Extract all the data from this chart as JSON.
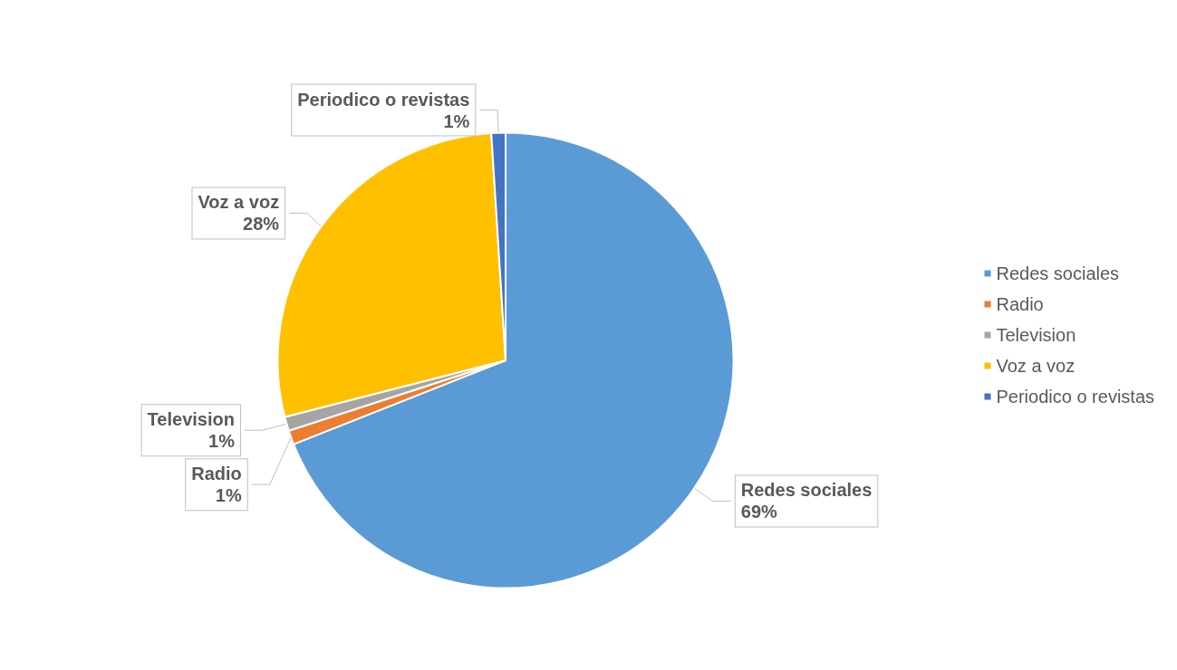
{
  "chart_data": {
    "type": "pie",
    "categories": [
      "Redes sociales",
      "Radio",
      "Television",
      "Voz a voz",
      "Periodico o revistas"
    ],
    "values": [
      69,
      1,
      1,
      28,
      1
    ],
    "colors": [
      "#5b9bd5",
      "#ed7d31",
      "#a5a5a5",
      "#ffc000",
      "#4472c4"
    ],
    "value_labels": [
      "69%",
      "1%",
      "1%",
      "28%",
      "1%"
    ],
    "legend": "right"
  }
}
